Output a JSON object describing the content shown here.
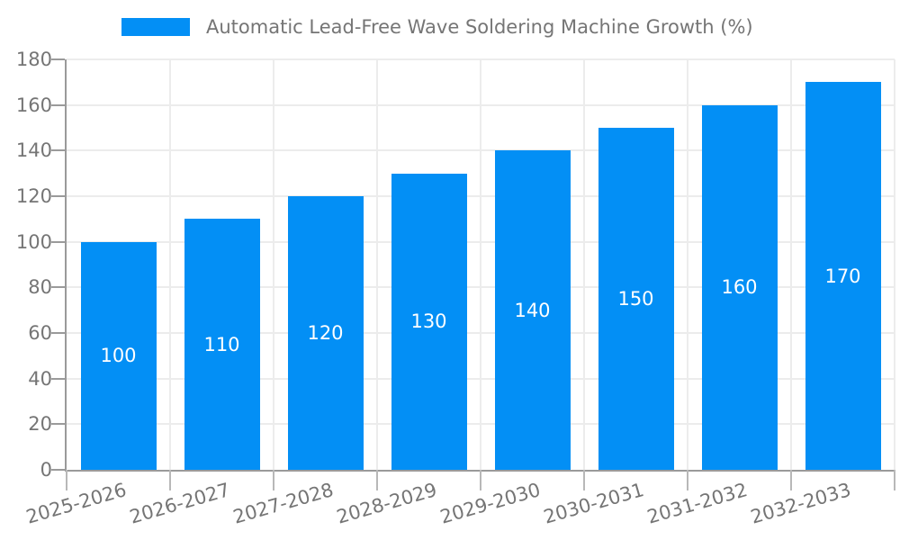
{
  "legend": {
    "label": "Automatic Lead-Free Wave Soldering Machine Growth (%)"
  },
  "colors": {
    "bar": "#038ff5",
    "axis": "#9a9a9a",
    "grid": "#ececec",
    "tick": "#b8b8b8",
    "tick_text": "#757575",
    "bar_label_text": "#ffffff"
  },
  "chart_data": {
    "type": "bar",
    "title": "Automatic Lead-Free Wave Soldering Machine Growth (%)",
    "series_name": "Automatic Lead-Free Wave Soldering Machine Growth (%)",
    "categories": [
      "2025-2026",
      "2026-2027",
      "2027-2028",
      "2028-2029",
      "2029-2030",
      "2030-2031",
      "2031-2032",
      "2032-2033"
    ],
    "values": [
      100,
      110,
      120,
      130,
      140,
      150,
      160,
      170
    ],
    "data_labels": [
      100,
      110,
      120,
      130,
      140,
      150,
      160,
      170
    ],
    "data_label_position": "inside-center",
    "xlabel": "",
    "ylabel": "",
    "ylim": [
      0,
      180
    ],
    "yticks": [
      0,
      20,
      40,
      60,
      80,
      100,
      120,
      140,
      160,
      180
    ],
    "grid": true,
    "legend_position": "top"
  }
}
